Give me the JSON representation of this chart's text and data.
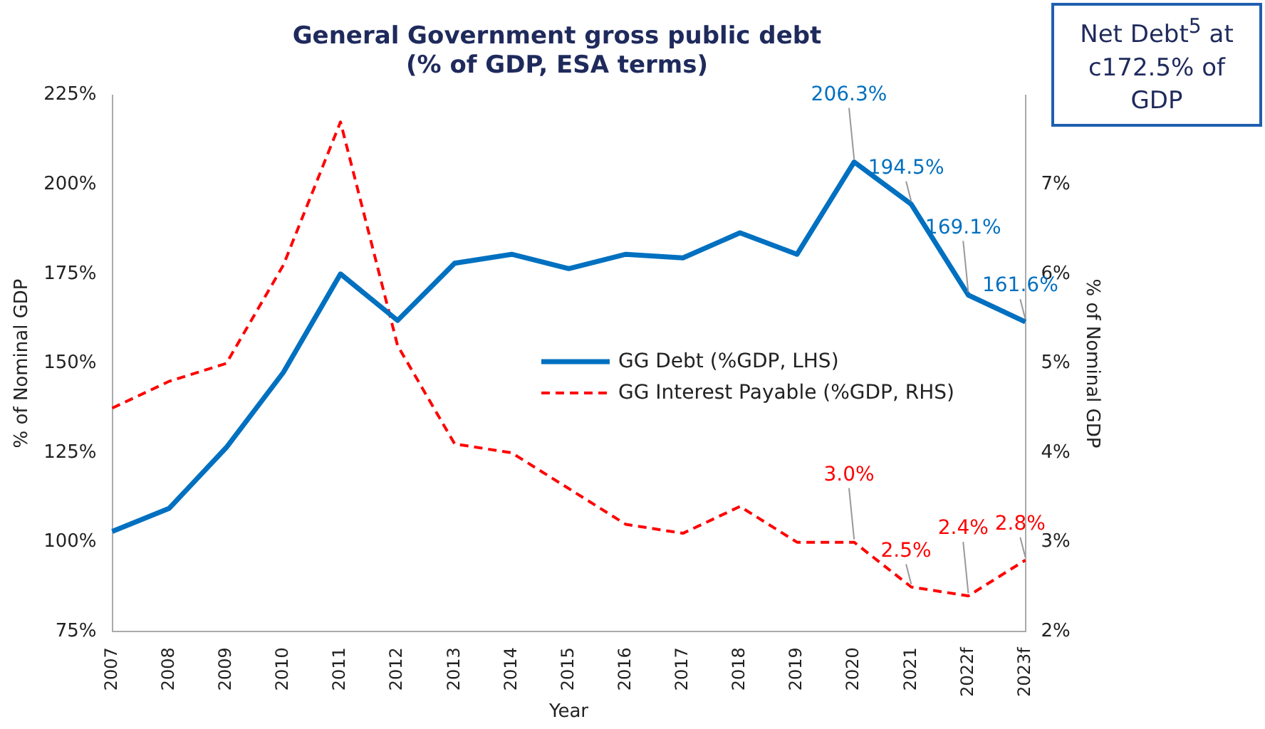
{
  "chart_data": {
    "type": "line",
    "title": "General Government gross public debt",
    "subtitle": "(% of GDP, ESA terms)",
    "xlabel": "Year",
    "ylabel": "% of Nominal GDP",
    "y2label": "% of Nominal GDP",
    "categories": [
      "2007",
      "2008",
      "2009",
      "2010",
      "2011",
      "2012",
      "2013",
      "2014",
      "2015",
      "2016",
      "2017",
      "2018",
      "2019",
      "2020",
      "2021",
      "2022f",
      "2023f"
    ],
    "series": [
      {
        "name": "GG Debt (%GDP, LHS)",
        "color": "#0070c0",
        "line_style": "solid",
        "values": [
          103,
          109.5,
          126.5,
          147.5,
          175,
          162,
          178,
          180.5,
          176.5,
          180.5,
          179.5,
          186.5,
          180.5,
          206.3,
          194.5,
          169.1,
          161.6
        ],
        "value_labels": [
          null,
          null,
          null,
          null,
          null,
          null,
          null,
          null,
          null,
          null,
          null,
          null,
          null,
          "206.3%",
          "194.5%",
          "169.1%",
          "161.6%"
        ]
      },
      {
        "name": "GG Interest Payable (%GDP, RHS)",
        "color": "#ff0000",
        "line_style": "dashed",
        "axis": "y2",
        "values": [
          4.5,
          4.8,
          5.0,
          6.1,
          7.7,
          5.2,
          4.1,
          4.0,
          3.6,
          3.2,
          3.1,
          3.4,
          3.0,
          3.0,
          2.5,
          2.4,
          2.8
        ],
        "value_labels": [
          null,
          null,
          null,
          null,
          null,
          null,
          null,
          null,
          null,
          null,
          null,
          null,
          null,
          "3.0%",
          "2.5%",
          "2.4%",
          "2.8%"
        ]
      }
    ],
    "ylim": [
      75,
      225
    ],
    "yticks": [
      {
        "value": 75,
        "label": "75%"
      },
      {
        "value": 100,
        "label": "100%"
      },
      {
        "value": 125,
        "label": "125%"
      },
      {
        "value": 150,
        "label": "150%"
      },
      {
        "value": 175,
        "label": "175%"
      },
      {
        "value": 200,
        "label": "200%"
      },
      {
        "value": 225,
        "label": "225%"
      }
    ],
    "y2lim": [
      2,
      8
    ],
    "y2ticks": [
      {
        "value": 2,
        "label": "2%"
      },
      {
        "value": 3,
        "label": "3%"
      },
      {
        "value": 4,
        "label": "4%"
      },
      {
        "value": 5,
        "label": "5%"
      },
      {
        "value": 6,
        "label": "6%"
      },
      {
        "value": 7,
        "label": "7%"
      }
    ],
    "grid": false,
    "legend": "right",
    "marker": "none",
    "annotations": [
      "Net Debt$^{5}$ at c172.5% of GDP"
    ]
  }
}
